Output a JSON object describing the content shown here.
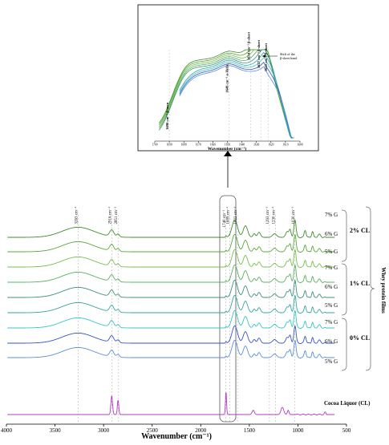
{
  "chart_data": [
    {
      "type": "line",
      "title": "",
      "xlabel": "Wavenumber (cm⁻¹)",
      "ylabel": "",
      "xlim": [
        4000,
        500
      ],
      "x_axis_reversed": true,
      "x_ticks": [
        "4000",
        "3500",
        "3000",
        "2500",
        "2000",
        "1500",
        "1000",
        "500"
      ],
      "grid": false,
      "legend_placement": "right",
      "peak_labels": [
        {
          "x": 3263,
          "text": "3263 cm⁻¹"
        },
        {
          "x": 2916,
          "text": "2916 cm⁻¹"
        },
        {
          "x": 2851,
          "text": "2851 cm⁻¹"
        },
        {
          "x": 1740,
          "text": "1740 cm⁻¹"
        },
        {
          "x": 1699,
          "text": "1699 cm⁻¹"
        },
        {
          "x": 1622,
          "text": "1622 cm⁻¹"
        },
        {
          "x": 1293,
          "text": "1293 cm⁻¹"
        },
        {
          "x": 1230,
          "text": "1230 cm⁻¹"
        },
        {
          "x": 1030,
          "text": "1030 cm⁻¹"
        }
      ],
      "series": [
        {
          "name": "7% G",
          "group": "2% CL",
          "color": "#3f8f2a"
        },
        {
          "name": "6% G",
          "group": "2% CL",
          "color": "#5aa83a"
        },
        {
          "name": "5% G",
          "group": "2% CL",
          "color": "#77bf4c"
        },
        {
          "name": "7% G",
          "group": "1% CL",
          "color": "#58b060"
        },
        {
          "name": "6% G",
          "group": "1% CL",
          "color": "#3e8f80"
        },
        {
          "name": "5% G",
          "group": "1% CL",
          "color": "#33a6a0"
        },
        {
          "name": "7% G",
          "group": "0% CL",
          "color": "#37c5c5"
        },
        {
          "name": "6% G",
          "group": "0% CL",
          "color": "#3a52c8"
        },
        {
          "name": "5% G",
          "group": "0% CL",
          "color": "#5a8fd8"
        },
        {
          "name": "Cocoa Liquor (CL)",
          "group": "",
          "color": "#b03cc0"
        }
      ],
      "group_labels": [
        "2% CL",
        "1% CL",
        "0% CL"
      ],
      "bracket_label": "Whey protein films"
    },
    {
      "type": "line",
      "title": "",
      "xlabel": "Wavenumber (cm⁻¹)",
      "ylabel": "",
      "xlim": [
        1700,
        1600
      ],
      "x_axis_reversed": true,
      "x_ticks": [
        "1700",
        "1690",
        "1680",
        "1670",
        "1660",
        "1650",
        "1640",
        "1630",
        "1620",
        "1610",
        "1600"
      ],
      "peak_labels": [
        {
          "x": 1690,
          "text": "1690 cm⁻¹ β-turn"
        },
        {
          "x": 1649,
          "text": "1649 cm⁻¹ α-Helix"
        },
        {
          "x": 1634,
          "text": "1634 cm⁻¹ β-sheet"
        },
        {
          "x": 1627,
          "text": "1627 cm⁻¹ β-sheet"
        },
        {
          "x": 1622,
          "text": "1622 cm⁻¹ β-sheet"
        }
      ],
      "annotation": "Shift of the β-sheet band"
    }
  ]
}
